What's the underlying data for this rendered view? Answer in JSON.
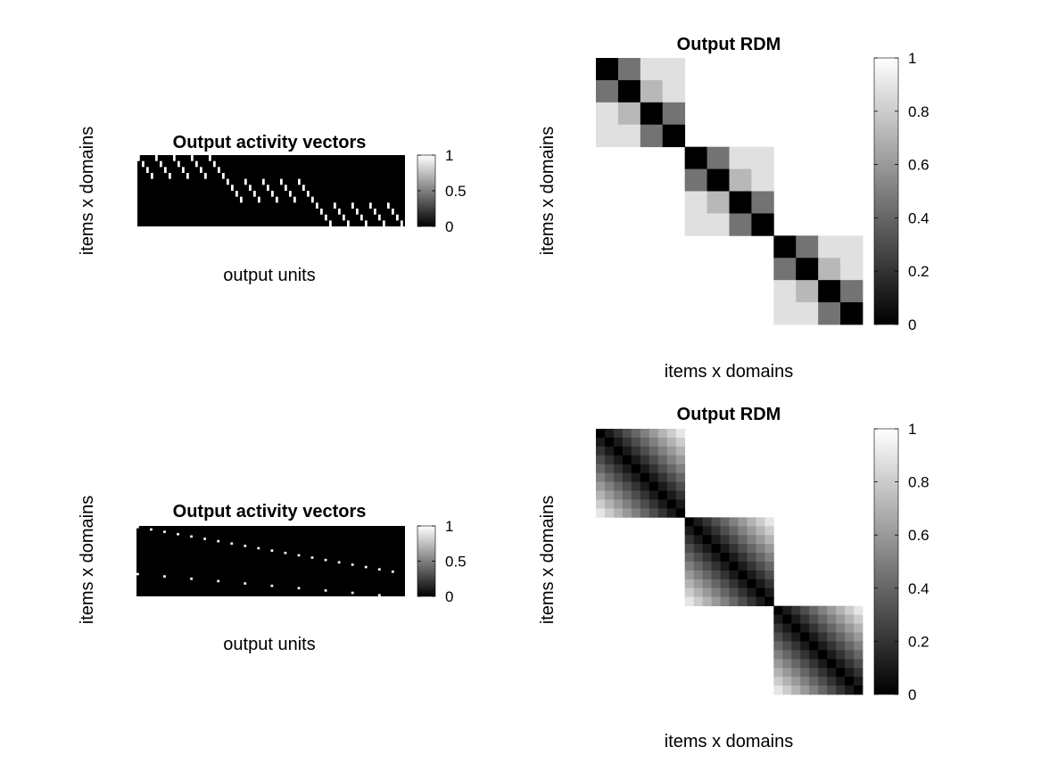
{
  "chart_data": [
    {
      "type": "heatmap",
      "panel": "top-left",
      "title": "Output activity vectors",
      "xlabel": "output units",
      "ylabel": "items x domains",
      "clim": [
        0,
        1
      ],
      "colormap": "gray",
      "colorbar_ticks": [
        "0",
        "0.5",
        "1"
      ],
      "rows": 12,
      "cols": 60,
      "pattern": "sparse-binary",
      "segments": [
        {
          "row_start": 0,
          "row_end": 4,
          "col_start": 0,
          "col_end": 20,
          "step": 1
        },
        {
          "row_start": 4,
          "row_end": 8,
          "col_start": 20,
          "col_end": 40,
          "step": 1
        },
        {
          "row_start": 8,
          "row_end": 12,
          "col_start": 40,
          "col_end": 60,
          "step": 1
        }
      ]
    },
    {
      "type": "heatmap",
      "panel": "top-right",
      "title": "Output RDM",
      "xlabel": "items x domains",
      "ylabel": "items x domains",
      "clim": [
        0,
        1
      ],
      "colormap": "gray",
      "colorbar_ticks": [
        "0",
        "0.2",
        "0.4",
        "0.6",
        "0.8",
        "1"
      ],
      "size": 12,
      "block_size": 4,
      "structure": "hierarchical",
      "within_pair_value": 0.45,
      "within_block_value": 0.72,
      "between_pair_value": 0.88,
      "between_block": "blank"
    },
    {
      "type": "heatmap",
      "panel": "bottom-left",
      "title": "Output activity vectors",
      "xlabel": "output units",
      "ylabel": "items x domains",
      "clim": [
        0,
        1
      ],
      "colormap": "gray",
      "colorbar_ticks": [
        "0",
        "0.5",
        "1"
      ],
      "rows": 30,
      "cols": 60,
      "pattern": "sparse-binary",
      "segments": [
        {
          "row_start": 0,
          "row_end": 10,
          "col_start": 0,
          "col_end": 30,
          "step": 3
        },
        {
          "row_start": 10,
          "row_end": 20,
          "col_start": 30,
          "col_end": 60,
          "step": 3
        },
        {
          "row_start": 20,
          "row_end": 30,
          "col_start": 0,
          "col_end": 60,
          "step": 6
        }
      ]
    },
    {
      "type": "heatmap",
      "panel": "bottom-right",
      "title": "Output RDM",
      "xlabel": "items x domains",
      "ylabel": "items x domains",
      "clim": [
        0,
        1
      ],
      "colormap": "gray",
      "colorbar_ticks": [
        "0",
        "0.2",
        "0.4",
        "0.6",
        "0.8",
        "1"
      ],
      "size": 30,
      "block_size": 10,
      "structure": "graded",
      "graded_step": 0.1,
      "between_block": "blank"
    }
  ]
}
